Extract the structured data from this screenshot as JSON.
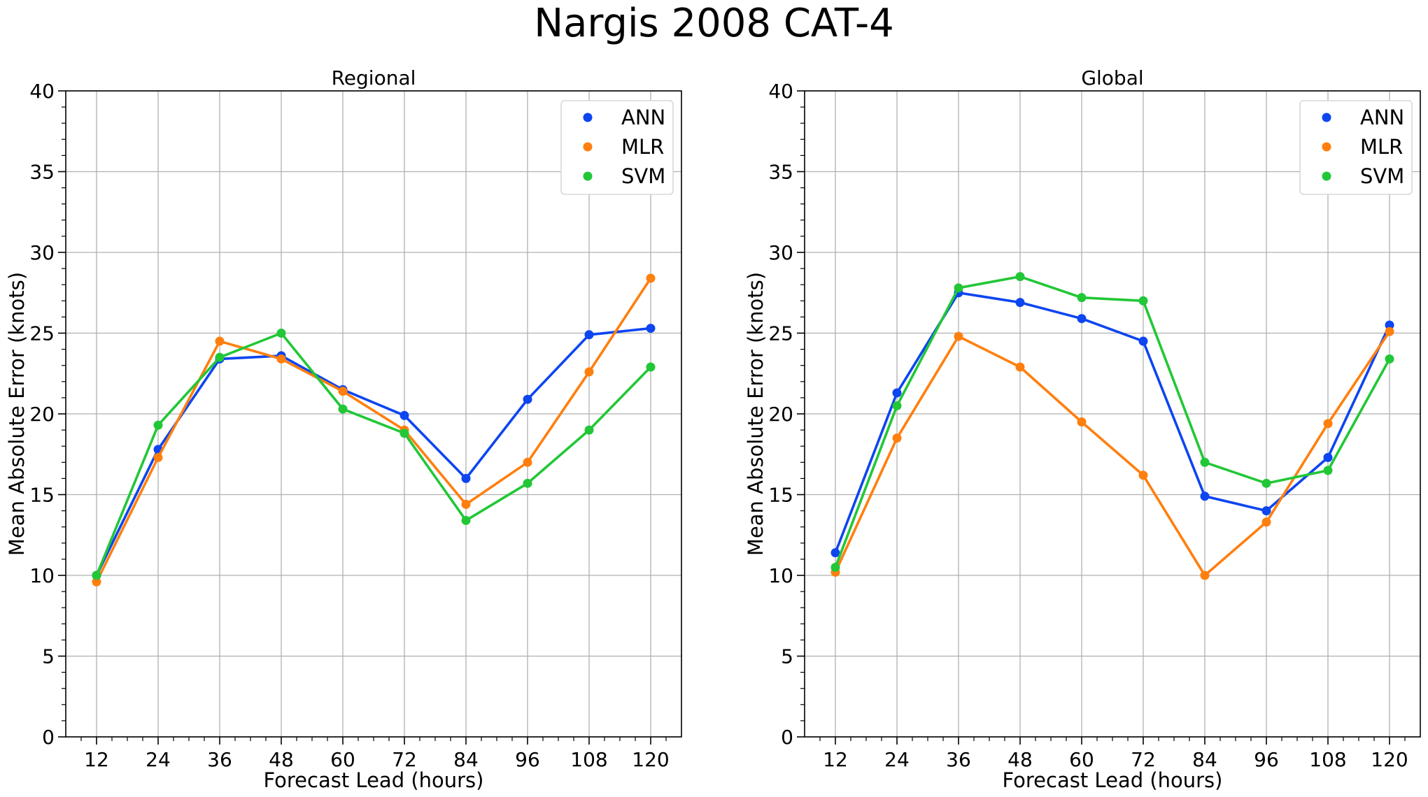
{
  "figure_title": "Nargis 2008 CAT-4",
  "chart_data": [
    {
      "type": "line",
      "title": "Regional",
      "xlabel": "Forecast Lead (hours)",
      "ylabel": "Mean Absolute Error (knots)",
      "x": [
        12,
        24,
        36,
        48,
        60,
        72,
        84,
        96,
        108,
        120
      ],
      "x_ticks": [
        12,
        24,
        36,
        48,
        60,
        72,
        84,
        96,
        108,
        120
      ],
      "xlim": [
        6,
        126
      ],
      "y_ticks": [
        0,
        5,
        10,
        15,
        20,
        25,
        30,
        35,
        40
      ],
      "ylim": [
        0,
        40
      ],
      "grid": true,
      "legend": "top-right",
      "series": [
        {
          "name": "ANN",
          "color": "#0d45f0",
          "values": [
            10.0,
            17.8,
            23.4,
            23.6,
            21.5,
            19.9,
            16.0,
            20.9,
            24.9,
            25.3
          ]
        },
        {
          "name": "MLR",
          "color": "#ff7f0e",
          "values": [
            9.6,
            17.3,
            24.5,
            23.4,
            21.4,
            19.0,
            14.4,
            17.0,
            22.6,
            28.4
          ]
        },
        {
          "name": "SVM",
          "color": "#22c737",
          "values": [
            10.0,
            19.3,
            23.5,
            25.0,
            20.3,
            18.8,
            13.4,
            15.7,
            19.0,
            22.9
          ]
        }
      ]
    },
    {
      "type": "line",
      "title": "Global",
      "xlabel": "Forecast Lead (hours)",
      "ylabel": "Mean Absolute Error (knots)",
      "x": [
        12,
        24,
        36,
        48,
        60,
        72,
        84,
        96,
        108,
        120
      ],
      "x_ticks": [
        12,
        24,
        36,
        48,
        60,
        72,
        84,
        96,
        108,
        120
      ],
      "xlim": [
        6,
        126
      ],
      "y_ticks": [
        0,
        5,
        10,
        15,
        20,
        25,
        30,
        35,
        40
      ],
      "ylim": [
        0,
        40
      ],
      "grid": true,
      "legend": "top-right",
      "series": [
        {
          "name": "ANN",
          "color": "#0d45f0",
          "values": [
            11.4,
            21.3,
            27.5,
            26.9,
            25.9,
            24.5,
            14.9,
            14.0,
            17.3,
            25.5
          ]
        },
        {
          "name": "MLR",
          "color": "#ff7f0e",
          "values": [
            10.2,
            18.5,
            24.8,
            22.9,
            19.5,
            16.2,
            10.0,
            13.3,
            19.4,
            25.1
          ]
        },
        {
          "name": "SVM",
          "color": "#22c737",
          "values": [
            10.5,
            20.5,
            27.8,
            28.5,
            27.2,
            27.0,
            17.0,
            15.7,
            16.5,
            23.4
          ]
        }
      ]
    }
  ]
}
